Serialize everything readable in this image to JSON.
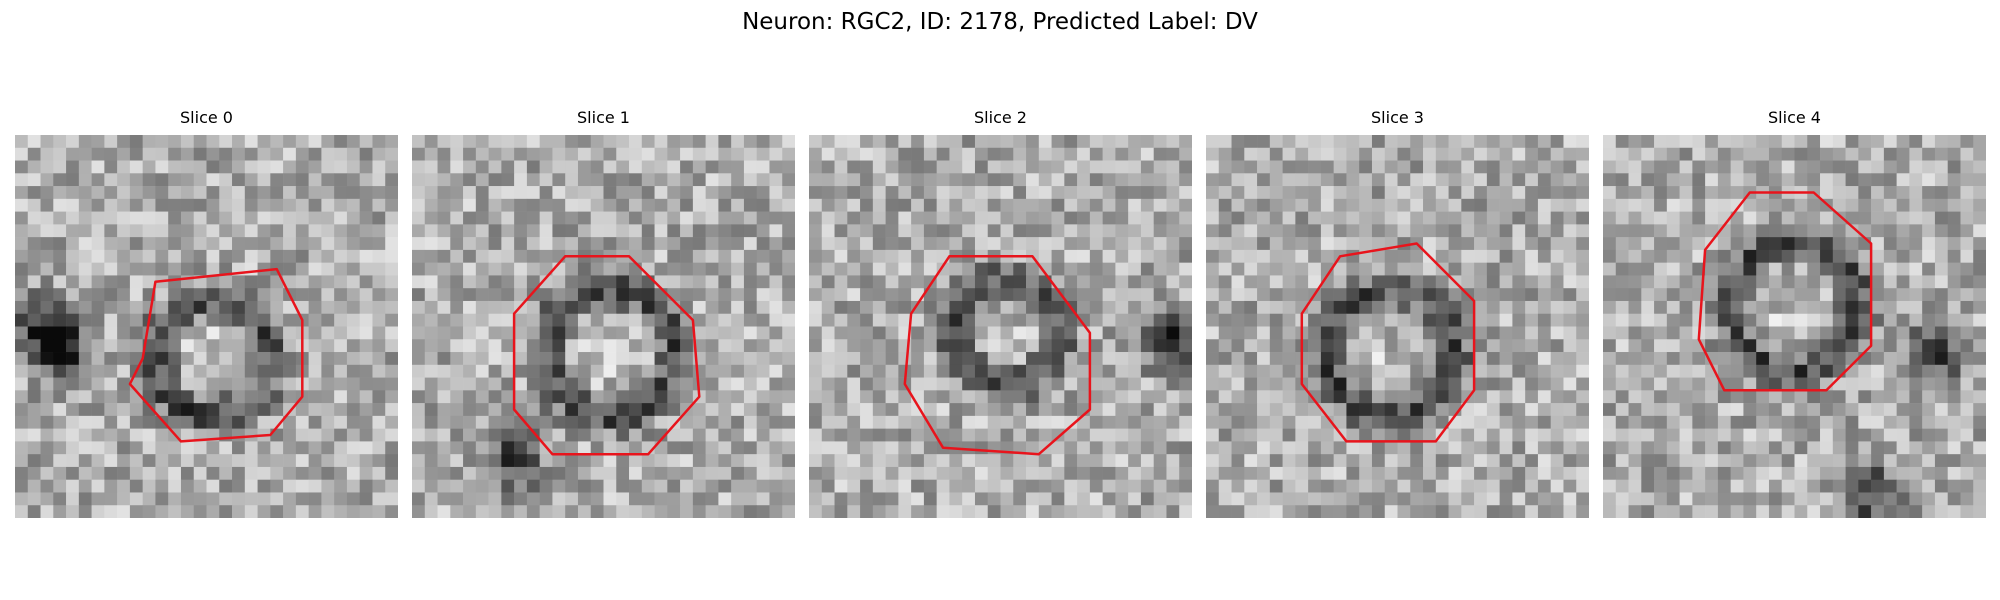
{
  "figure": {
    "title": "Neuron: RGC2, ID: 2178, Predicted Label: DV"
  },
  "slices": [
    {
      "title": "Slice 0"
    },
    {
      "title": "Slice 1"
    },
    {
      "title": "Slice 2"
    },
    {
      "title": "Slice 3"
    },
    {
      "title": "Slice 4"
    }
  ],
  "colors": {
    "contour": "#e8141c",
    "colormap": "grayscale"
  }
}
